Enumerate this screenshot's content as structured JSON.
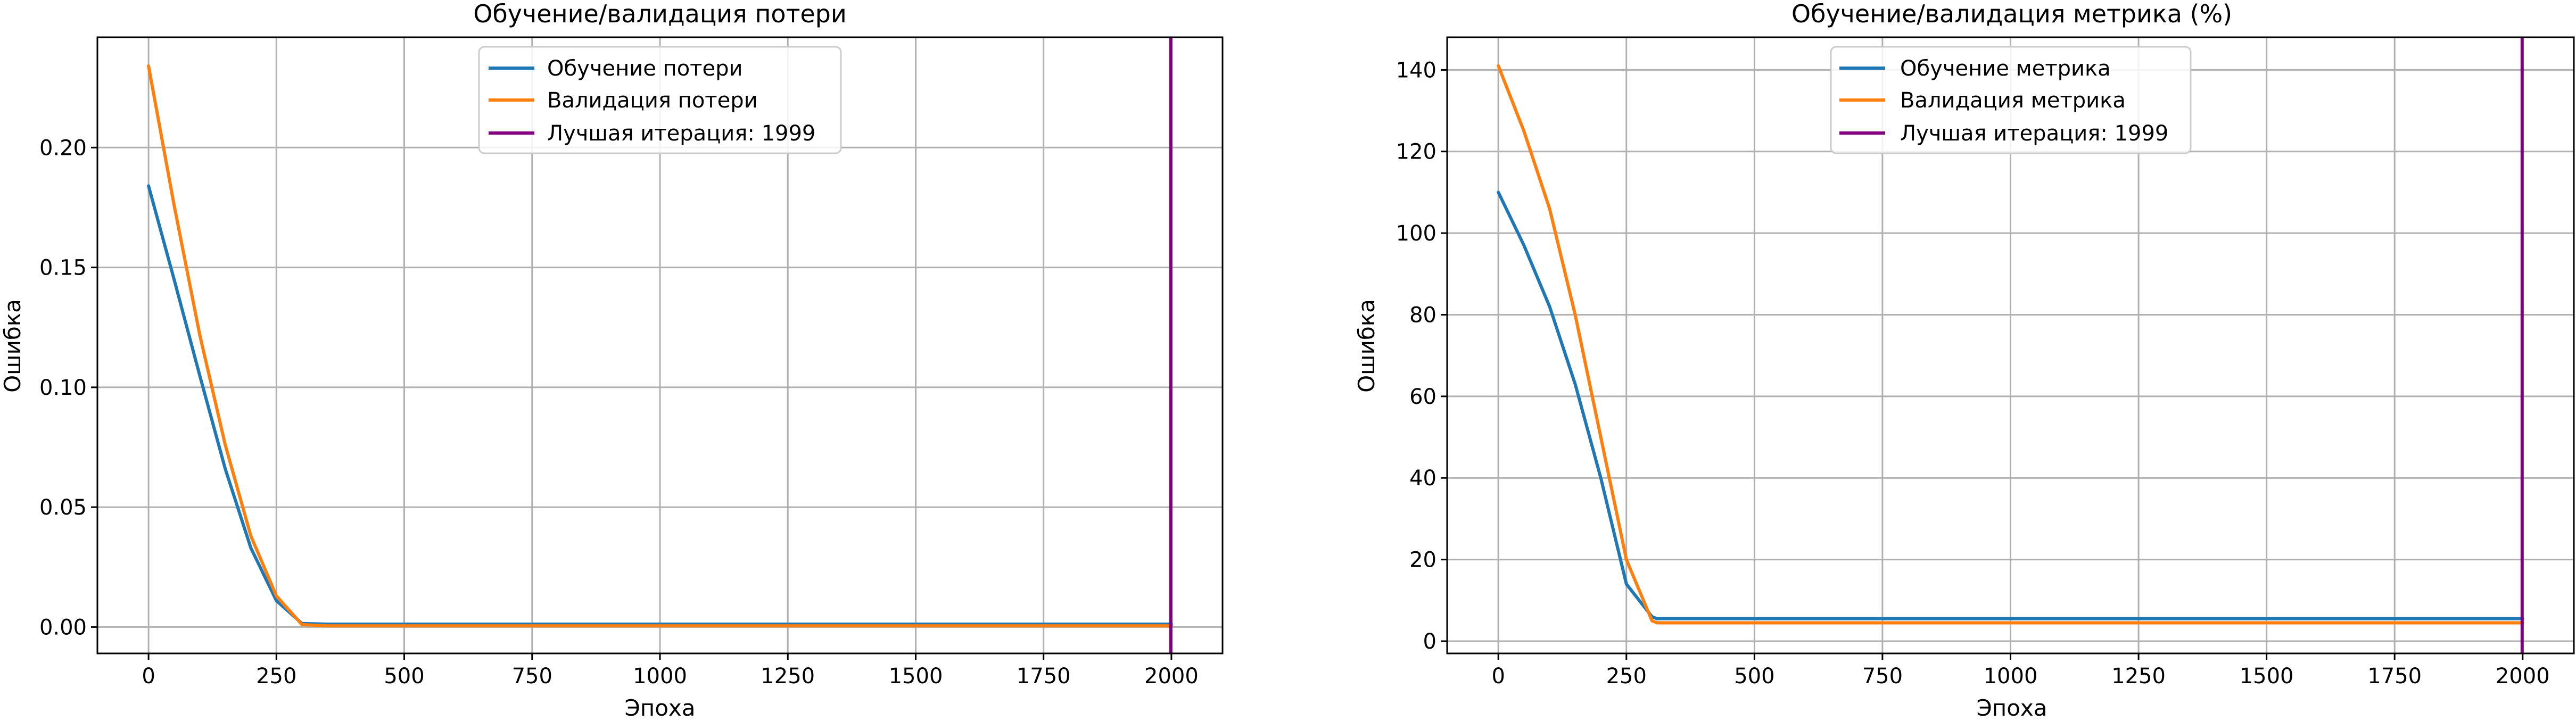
{
  "chart_data": [
    {
      "type": "line",
      "title": "Обучение/валидация потери",
      "xlabel": "Эпоха",
      "ylabel": "Ошибка",
      "xlim": [
        -100,
        2100
      ],
      "ylim": [
        -0.011,
        0.246
      ],
      "xticks": [
        0,
        250,
        500,
        750,
        1000,
        1250,
        1500,
        1750,
        2000
      ],
      "xtick_labels": [
        "0",
        "250",
        "500",
        "750",
        "1000",
        "1250",
        "1500",
        "1750",
        "2000"
      ],
      "yticks": [
        0.0,
        0.05,
        0.1,
        0.15,
        0.2
      ],
      "ytick_labels": [
        "0.00",
        "0.05",
        "0.10",
        "0.15",
        "0.20"
      ],
      "grid": true,
      "legend_position": "top-center",
      "series": [
        {
          "name": "Обучение потери",
          "color": "#1f77b4",
          "x": [
            0,
            50,
            100,
            150,
            200,
            250,
            300,
            350,
            500,
            1000,
            1500,
            2000
          ],
          "y": [
            0.184,
            0.145,
            0.105,
            0.066,
            0.033,
            0.011,
            0.0015,
            0.0012,
            0.0012,
            0.0012,
            0.0012,
            0.0012
          ]
        },
        {
          "name": "Валидация потери",
          "color": "#ff7f0e",
          "x": [
            0,
            50,
            100,
            150,
            200,
            250,
            300,
            350,
            500,
            1000,
            1500,
            2000
          ],
          "y": [
            0.234,
            0.176,
            0.122,
            0.076,
            0.038,
            0.013,
            0.001,
            0.0005,
            0.0005,
            0.0005,
            0.0005,
            0.0005
          ]
        }
      ],
      "vline": {
        "name": "Лучшая итерация: 1999",
        "x": 1999,
        "color": "#800080"
      }
    },
    {
      "type": "line",
      "title": "Обучение/валидация метрика (%)",
      "xlabel": "Эпоха",
      "ylabel": "Ошибка",
      "xlim": [
        -100,
        2100
      ],
      "ylim": [
        -3,
        148
      ],
      "xticks": [
        0,
        250,
        500,
        750,
        1000,
        1250,
        1500,
        1750,
        2000
      ],
      "xtick_labels": [
        "0",
        "250",
        "500",
        "750",
        "1000",
        "1250",
        "1500",
        "1750",
        "2000"
      ],
      "yticks": [
        0,
        20,
        40,
        60,
        80,
        100,
        120,
        140
      ],
      "ytick_labels": [
        "0",
        "20",
        "40",
        "60",
        "80",
        "100",
        "120",
        "140"
      ],
      "grid": true,
      "legend_position": "top-center",
      "series": [
        {
          "name": "Обучение метрика",
          "color": "#1f77b4",
          "x": [
            0,
            50,
            100,
            150,
            200,
            250,
            300,
            310,
            320,
            500,
            1000,
            1500,
            2000
          ],
          "y": [
            110,
            97,
            82,
            63,
            40,
            14,
            6,
            5.5,
            5.5,
            5.5,
            5.5,
            5.5,
            5.5
          ]
        },
        {
          "name": "Валидация метрика",
          "color": "#ff7f0e",
          "x": [
            0,
            50,
            100,
            150,
            200,
            250,
            300,
            310,
            320,
            500,
            1000,
            1500,
            2000
          ],
          "y": [
            141,
            125,
            106,
            80,
            50,
            20,
            5,
            4.5,
            4.5,
            4.5,
            4.5,
            4.5,
            4.5
          ]
        }
      ],
      "vline": {
        "name": "Лучшая итерация: 1999",
        "x": 1999,
        "color": "#800080"
      }
    }
  ]
}
